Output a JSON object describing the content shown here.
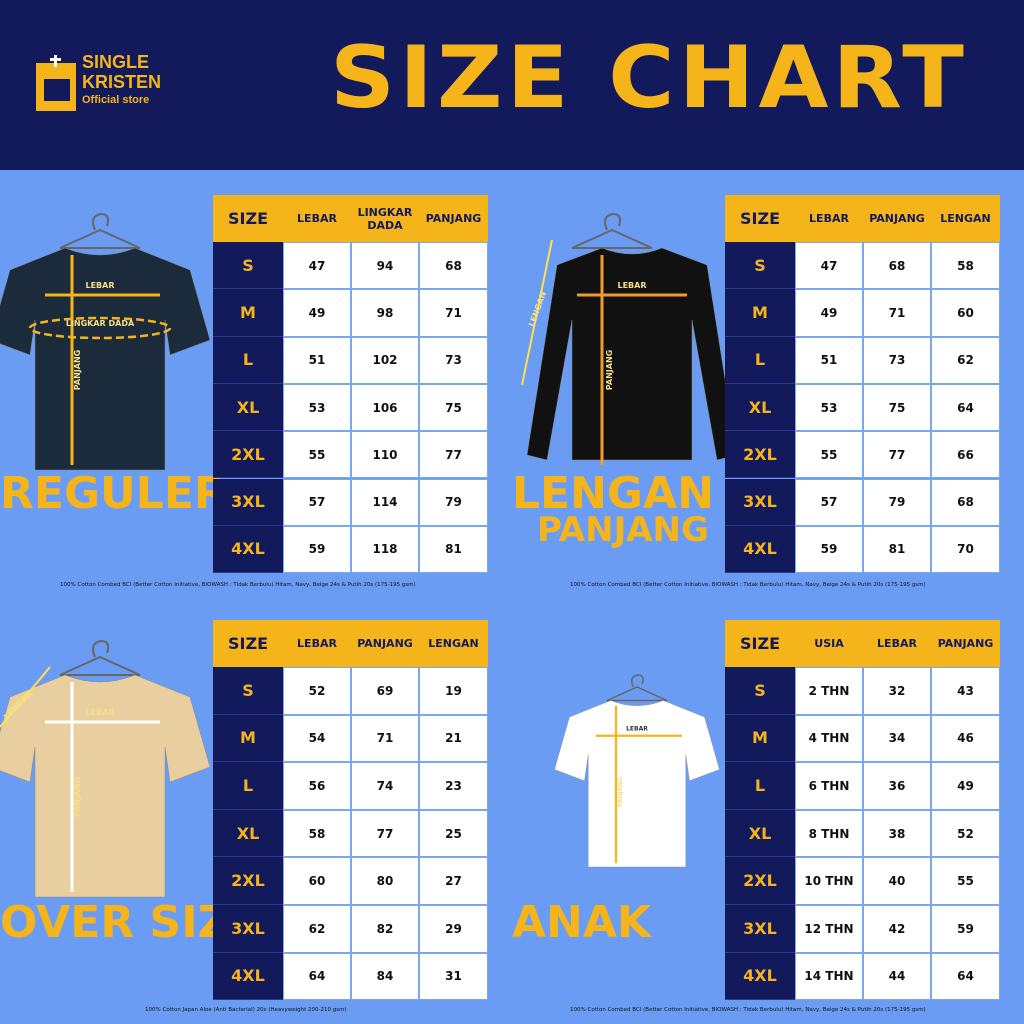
{
  "header": {
    "brand_line1": "SINGLE",
    "brand_line2": "KRISTEN",
    "brand_tagline": "Official store",
    "title": "SIZE CHART"
  },
  "panels": [
    {
      "label": [
        "REGULER"
      ],
      "shirt_labels": [
        "LEBAR",
        "LINGKAR DADA",
        "PANJANG"
      ],
      "columns": [
        "SIZE",
        "LEBAR",
        "LINGKAR DADA",
        "PANJANG"
      ],
      "rows": [
        [
          "S",
          47,
          94,
          68
        ],
        [
          "M",
          49,
          98,
          71
        ],
        [
          "L",
          51,
          102,
          73
        ],
        [
          "XL",
          53,
          106,
          75
        ],
        [
          "2XL",
          55,
          110,
          77
        ],
        [
          "3XL",
          57,
          114,
          79
        ],
        [
          "4XL",
          59,
          118,
          81
        ]
      ],
      "note": "100% Cotton Combed BCI (Better Cotton Initiative, BIOWASH : Tidak Berbulu) Hitam, Navy, Beige 24s & Putih 20s (175-195 gsm)"
    },
    {
      "label": [
        "LENGAN",
        "PANJANG"
      ],
      "shirt_labels": [
        "LEBAR",
        "LENGAN",
        "PANJANG"
      ],
      "columns": [
        "SIZE",
        "LEBAR",
        "PANJANG",
        "LENGAN"
      ],
      "rows": [
        [
          "S",
          47,
          68,
          58
        ],
        [
          "M",
          49,
          71,
          60
        ],
        [
          "L",
          51,
          73,
          62
        ],
        [
          "XL",
          53,
          75,
          64
        ],
        [
          "2XL",
          55,
          77,
          66
        ],
        [
          "3XL",
          57,
          79,
          68
        ],
        [
          "4XL",
          59,
          81,
          70
        ]
      ],
      "note": "100% Cotton Combed BCI (Better Cotton Initiative, BIOWASH : Tidak Berbulu) Hitam, Navy, Beige 24s & Putih 20s (175-195 gsm)"
    },
    {
      "label": [
        "OVER SIZE"
      ],
      "shirt_labels": [
        "LEBAR",
        "LENGAN",
        "PANJANG"
      ],
      "columns": [
        "SIZE",
        "LEBAR",
        "PANJANG",
        "LENGAN"
      ],
      "rows": [
        [
          "S",
          52,
          69,
          19
        ],
        [
          "M",
          54,
          71,
          21
        ],
        [
          "L",
          56,
          74,
          23
        ],
        [
          "XL",
          58,
          77,
          25
        ],
        [
          "2XL",
          60,
          80,
          27
        ],
        [
          "3XL",
          62,
          82,
          29
        ],
        [
          "4XL",
          64,
          84,
          31
        ]
      ],
      "note": "100% Cotton Japan Aloe (Anti Bacterial) 20s (Heavyweight 200-210 gsm)"
    },
    {
      "label": [
        "ANAK"
      ],
      "shirt_labels": [
        "LEBAR",
        "PANJANG"
      ],
      "columns": [
        "SIZE",
        "USIA",
        "LEBAR",
        "PANJANG"
      ],
      "rows": [
        [
          "S",
          "2 THN",
          32,
          43
        ],
        [
          "M",
          "4 THN",
          34,
          46
        ],
        [
          "L",
          "6 THN",
          36,
          49
        ],
        [
          "XL",
          "8 THN",
          38,
          52
        ],
        [
          "2XL",
          "10 THN",
          40,
          55
        ],
        [
          "3XL",
          "12 THN",
          42,
          59
        ],
        [
          "4XL",
          "14 THN",
          44,
          64
        ]
      ],
      "note": "100% Cotton Combed BCI (Better Cotton Initiative, BIOWASH : Tidak Berbulu) Hitam, Navy, Beige 24s & Putih 20s (175-195 gsm)"
    }
  ]
}
